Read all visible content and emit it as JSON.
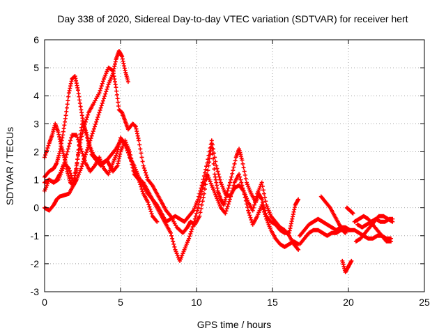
{
  "chart_data": {
    "type": "scatter",
    "title": "Day 338 of 2020, Sidereal Day-to-day VTEC variation (SDTVAR) for receiver hert",
    "xlabel": "GPS time / hours",
    "ylabel": "SDTVAR / TECUs",
    "xlim": [
      0,
      25
    ],
    "ylim": [
      -3,
      6
    ],
    "x_ticks": [
      0,
      5,
      10,
      15,
      20,
      25
    ],
    "y_ticks": [
      -3,
      -2,
      -1,
      0,
      1,
      2,
      3,
      4,
      5,
      6
    ],
    "grid": true,
    "marker": "+",
    "colors": {
      "series": "#ff0000",
      "axes": "#000000",
      "grid": "#a0a0a0"
    },
    "series": [
      {
        "name": "track-1",
        "points": [
          [
            0,
            0.0
          ],
          [
            0.3,
            -0.1
          ],
          [
            0.6,
            0.1
          ],
          [
            0.8,
            0.3
          ],
          [
            1.0,
            0.4
          ],
          [
            1.3,
            0.45
          ],
          [
            1.6,
            0.5
          ],
          [
            1.9,
            0.8
          ],
          [
            2.1,
            1.5
          ],
          [
            2.3,
            2.2
          ],
          [
            2.6,
            2.9
          ],
          [
            2.9,
            3.4
          ],
          [
            3.2,
            3.7
          ],
          [
            3.6,
            4.1
          ],
          [
            3.9,
            4.6
          ],
          [
            4.2,
            5.0
          ],
          [
            4.5,
            4.9
          ],
          [
            4.7,
            4.3
          ],
          [
            4.9,
            3.5
          ],
          [
            5.1,
            3.4
          ],
          [
            5.3,
            3.1
          ],
          [
            5.5,
            2.8
          ],
          [
            5.8,
            3.0
          ],
          [
            6.0,
            2.9
          ],
          [
            6.2,
            2.4
          ],
          [
            6.5,
            1.5
          ],
          [
            6.8,
            1.0
          ],
          [
            7.1,
            0.8
          ],
          [
            7.4,
            0.5
          ],
          [
            7.7,
            0.2
          ],
          [
            8.0,
            -0.1
          ],
          [
            8.3,
            -0.3
          ],
          [
            8.7,
            -0.7
          ],
          [
            9.1,
            -0.9
          ],
          [
            9.4,
            -0.7
          ],
          [
            9.6,
            -0.5
          ],
          [
            9.9,
            -0.6
          ],
          [
            10.2,
            -0.3
          ],
          [
            10.5,
            0.5
          ],
          [
            10.8,
            1.5
          ],
          [
            11.0,
            2.3
          ],
          [
            11.2,
            1.2
          ],
          [
            11.4,
            0.6
          ],
          [
            11.6,
            0.3
          ],
          [
            11.8,
            0.1
          ],
          [
            12.0,
            0.5
          ],
          [
            12.3,
            1.1
          ],
          [
            12.6,
            1.8
          ],
          [
            12.8,
            2.1
          ],
          [
            13.0,
            1.7
          ],
          [
            13.3,
            0.9
          ],
          [
            13.6,
            0.5
          ],
          [
            13.9,
            0.2
          ],
          [
            14.1,
            0.5
          ],
          [
            14.3,
            0.3
          ],
          [
            14.6,
            -0.3
          ],
          [
            14.9,
            -0.5
          ],
          [
            15.2,
            -0.6
          ],
          [
            15.5,
            -0.8
          ],
          [
            15.8,
            -0.9
          ],
          [
            16.1,
            -0.9
          ],
          [
            16.3,
            -0.4
          ],
          [
            16.5,
            0.1
          ],
          [
            16.7,
            0.3
          ]
        ]
      },
      {
        "name": "track-2",
        "points": [
          [
            0,
            0.6
          ],
          [
            0.3,
            1.0
          ],
          [
            0.6,
            0.9
          ],
          [
            0.8,
            1.0
          ],
          [
            1.0,
            1.2
          ],
          [
            1.3,
            1.6
          ],
          [
            1.6,
            1.4
          ],
          [
            1.9,
            0.9
          ],
          [
            2.1,
            1.4
          ],
          [
            2.3,
            2.4
          ],
          [
            2.5,
            3.1
          ],
          [
            2.8,
            2.6
          ],
          [
            3.1,
            1.9
          ],
          [
            3.4,
            1.7
          ],
          [
            3.7,
            1.5
          ],
          [
            3.9,
            1.6
          ],
          [
            4.1,
            1.7
          ],
          [
            4.3,
            1.5
          ],
          [
            4.5,
            1.3
          ],
          [
            4.8,
            1.5
          ],
          [
            5.0,
            2.0
          ],
          [
            5.3,
            2.4
          ],
          [
            5.6,
            2.0
          ],
          [
            5.9,
            1.3
          ],
          [
            6.2,
            1.0
          ],
          [
            6.5,
            0.9
          ],
          [
            6.8,
            0.6
          ],
          [
            7.1,
            0.3
          ],
          [
            7.4,
            0.0
          ],
          [
            7.7,
            -0.3
          ],
          [
            8.0,
            -0.6
          ],
          [
            8.3,
            -0.9
          ],
          [
            8.6,
            -1.5
          ],
          [
            8.9,
            -1.9
          ],
          [
            9.2,
            -1.5
          ],
          [
            9.5,
            -1.1
          ],
          [
            9.8,
            -0.6
          ],
          [
            10.1,
            0.0
          ],
          [
            10.4,
            0.7
          ],
          [
            10.7,
            1.2
          ],
          [
            11.0,
            0.8
          ],
          [
            11.3,
            0.4
          ],
          [
            11.6,
            0.0
          ],
          [
            11.9,
            -0.2
          ],
          [
            12.2,
            0.3
          ],
          [
            12.5,
            0.9
          ],
          [
            12.8,
            1.2
          ],
          [
            13.1,
            0.6
          ],
          [
            13.4,
            -0.1
          ],
          [
            13.7,
            -0.6
          ],
          [
            14.0,
            -0.3
          ],
          [
            14.3,
            0.1
          ],
          [
            14.6,
            -0.4
          ],
          [
            14.9,
            -0.8
          ],
          [
            15.2,
            -1.1
          ],
          [
            15.5,
            -1.3
          ],
          [
            15.8,
            -1.4
          ],
          [
            16.1,
            -1.3
          ],
          [
            16.4,
            -1.2
          ],
          [
            16.7,
            -1.3
          ]
        ]
      },
      {
        "name": "track-3",
        "points": [
          [
            0,
            1.1
          ],
          [
            0.3,
            1.3
          ],
          [
            0.6,
            1.4
          ],
          [
            0.8,
            1.6
          ],
          [
            1.0,
            2.0
          ],
          [
            1.2,
            2.6
          ],
          [
            1.4,
            3.3
          ],
          [
            1.6,
            4.1
          ],
          [
            1.8,
            4.6
          ],
          [
            2.0,
            4.7
          ],
          [
            2.2,
            4.2
          ],
          [
            2.4,
            3.5
          ],
          [
            2.6,
            2.9
          ],
          [
            2.9,
            2.3
          ],
          [
            3.2,
            1.9
          ],
          [
            3.5,
            1.7
          ],
          [
            3.8,
            1.6
          ],
          [
            4.1,
            1.7
          ],
          [
            4.4,
            1.9
          ],
          [
            4.7,
            2.1
          ],
          [
            5.0,
            2.4
          ],
          [
            5.3,
            2.3
          ],
          [
            5.6,
            1.8
          ],
          [
            5.9,
            1.5
          ],
          [
            6.2,
            1.1
          ],
          [
            6.5,
            0.8
          ],
          [
            6.8,
            0.5
          ],
          [
            7.1,
            0.3
          ],
          [
            7.4,
            0.1
          ],
          [
            7.7,
            -0.2
          ],
          [
            8.0,
            -0.5
          ],
          [
            8.3,
            -0.4
          ],
          [
            8.6,
            -0.3
          ],
          [
            8.9,
            -0.4
          ],
          [
            9.2,
            -0.5
          ],
          [
            9.5,
            -0.3
          ],
          [
            9.8,
            -0.1
          ],
          [
            10.1,
            0.3
          ],
          [
            10.4,
            0.9
          ],
          [
            10.7,
            1.6
          ],
          [
            11.0,
            2.4
          ],
          [
            11.3,
            1.5
          ],
          [
            11.6,
            0.9
          ],
          [
            11.9,
            0.5
          ],
          [
            12.2,
            0.4
          ],
          [
            12.5,
            0.7
          ],
          [
            12.8,
            0.8
          ],
          [
            13.1,
            0.6
          ],
          [
            13.4,
            0.2
          ],
          [
            13.7,
            -0.1
          ],
          [
            14.0,
            0.5
          ],
          [
            14.3,
            0.9
          ],
          [
            14.6,
            0.1
          ],
          [
            14.9,
            -0.3
          ],
          [
            15.2,
            -0.5
          ],
          [
            15.5,
            -0.7
          ],
          [
            15.8,
            -0.8
          ],
          [
            16.1,
            -1.0
          ],
          [
            16.4,
            -1.3
          ],
          [
            16.7,
            -1.5
          ]
        ]
      },
      {
        "name": "track-4",
        "points": [
          [
            0,
            1.8
          ],
          [
            0.3,
            2.3
          ],
          [
            0.5,
            2.6
          ],
          [
            0.7,
            3.0
          ],
          [
            0.9,
            2.7
          ],
          [
            1.1,
            2.2
          ],
          [
            1.3,
            1.8
          ],
          [
            1.5,
            1.3
          ],
          [
            1.7,
            0.9
          ],
          [
            1.9,
            0.8
          ],
          [
            2.1,
            1.0
          ],
          [
            2.4,
            1.4
          ],
          [
            2.7,
            1.9
          ],
          [
            3.0,
            2.4
          ],
          [
            3.3,
            2.9
          ],
          [
            3.6,
            3.4
          ],
          [
            3.9,
            3.9
          ],
          [
            4.2,
            4.4
          ],
          [
            4.5,
            4.8
          ],
          [
            4.7,
            5.3
          ],
          [
            4.9,
            5.6
          ],
          [
            5.1,
            5.4
          ],
          [
            5.3,
            4.9
          ],
          [
            5.5,
            4.5
          ]
        ]
      },
      {
        "name": "track-5",
        "points": [
          [
            0,
            0.9
          ],
          [
            0.3,
            1.0
          ],
          [
            0.6,
            0.9
          ],
          [
            0.9,
            1.0
          ],
          [
            1.2,
            1.4
          ],
          [
            1.5,
            2.0
          ],
          [
            1.8,
            2.6
          ],
          [
            2.1,
            2.6
          ],
          [
            2.4,
            2.1
          ],
          [
            2.7,
            1.6
          ],
          [
            3.0,
            1.3
          ],
          [
            3.3,
            1.5
          ],
          [
            3.6,
            1.8
          ],
          [
            3.9,
            1.4
          ],
          [
            4.2,
            1.2
          ],
          [
            4.5,
            1.6
          ],
          [
            4.8,
            2.0
          ],
          [
            5.0,
            2.5
          ],
          [
            5.3,
            2.3
          ],
          [
            5.6,
            1.9
          ],
          [
            5.9,
            1.2
          ],
          [
            6.2,
            1.0
          ],
          [
            6.5,
            0.5
          ],
          [
            6.8,
            0.2
          ],
          [
            7.1,
            -0.3
          ],
          [
            7.4,
            -0.5
          ]
        ]
      },
      {
        "name": "track-6",
        "points": [
          [
            16.8,
            -1.0
          ],
          [
            17.1,
            -0.8
          ],
          [
            17.4,
            -0.6
          ],
          [
            17.7,
            -0.5
          ],
          [
            18.0,
            -0.4
          ],
          [
            18.3,
            -0.5
          ],
          [
            18.6,
            -0.6
          ],
          [
            18.9,
            -0.7
          ],
          [
            19.2,
            -0.8
          ],
          [
            19.5,
            -0.7
          ],
          [
            19.8,
            -0.7
          ],
          [
            20.1,
            -0.8
          ],
          [
            20.4,
            -0.8
          ],
          [
            20.7,
            -0.9
          ],
          [
            21.0,
            -1.0
          ],
          [
            21.3,
            -1.1
          ],
          [
            21.6,
            -1.1
          ],
          [
            21.9,
            -1.0
          ],
          [
            22.2,
            -1.0
          ],
          [
            22.5,
            -1.1
          ],
          [
            22.8,
            -1.1
          ]
        ]
      },
      {
        "name": "track-7",
        "points": [
          [
            16.8,
            -1.3
          ],
          [
            17.1,
            -1.1
          ],
          [
            17.4,
            -0.9
          ],
          [
            17.7,
            -0.8
          ],
          [
            18.0,
            -0.8
          ],
          [
            18.3,
            -0.9
          ],
          [
            18.6,
            -1.0
          ],
          [
            18.9,
            -0.9
          ],
          [
            19.2,
            -0.9
          ],
          [
            19.5,
            -0.8
          ],
          [
            19.8,
            -0.8
          ],
          [
            20.1,
            -0.8
          ]
        ]
      },
      {
        "name": "track-8",
        "points": [
          [
            18.2,
            0.4
          ],
          [
            18.5,
            0.2
          ],
          [
            18.8,
            0.0
          ],
          [
            19.1,
            -0.3
          ],
          [
            19.4,
            -0.6
          ],
          [
            19.6,
            -0.8
          ],
          [
            19.8,
            -0.9
          ]
        ]
      },
      {
        "name": "track-9",
        "points": [
          [
            19.9,
            0.0
          ],
          [
            20.1,
            -0.1
          ],
          [
            20.3,
            -0.2
          ]
        ]
      },
      {
        "name": "track-10",
        "points": [
          [
            19.6,
            -1.9
          ],
          [
            19.8,
            -2.3
          ],
          [
            20.0,
            -2.1
          ],
          [
            20.2,
            -1.9
          ]
        ]
      },
      {
        "name": "track-11",
        "points": [
          [
            20.4,
            -0.5
          ],
          [
            20.7,
            -0.4
          ],
          [
            21.0,
            -0.3
          ],
          [
            21.3,
            -0.4
          ],
          [
            21.6,
            -0.6
          ],
          [
            21.9,
            -0.8
          ],
          [
            22.2,
            -1.0
          ],
          [
            22.5,
            -1.2
          ],
          [
            22.8,
            -1.2
          ]
        ]
      },
      {
        "name": "track-12",
        "points": [
          [
            20.5,
            -1.2
          ],
          [
            20.8,
            -1.1
          ],
          [
            21.1,
            -0.9
          ],
          [
            21.4,
            -0.7
          ],
          [
            21.7,
            -0.5
          ],
          [
            22.0,
            -0.3
          ],
          [
            22.3,
            -0.3
          ],
          [
            22.6,
            -0.4
          ],
          [
            22.9,
            -0.5
          ]
        ]
      },
      {
        "name": "track-13",
        "points": [
          [
            20.6,
            -0.6
          ],
          [
            20.9,
            -0.7
          ],
          [
            21.2,
            -0.6
          ],
          [
            21.5,
            -0.5
          ],
          [
            21.8,
            -0.4
          ],
          [
            22.1,
            -0.5
          ],
          [
            22.4,
            -0.5
          ],
          [
            22.7,
            -0.4
          ],
          [
            22.9,
            -0.4
          ]
        ]
      }
    ]
  }
}
